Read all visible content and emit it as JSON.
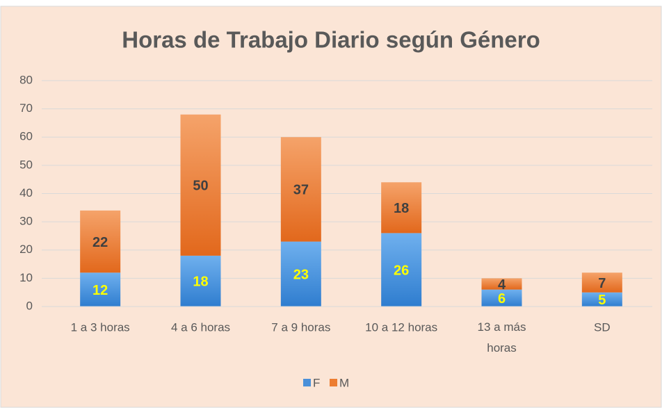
{
  "chart_data": {
    "type": "stacked_bar",
    "title": "Horas de Trabajo Diario según Género",
    "categories": [
      "1 a 3 horas",
      "4 a 6 horas",
      "7 a 9 horas",
      "10 a 12 horas",
      "13 a más horas",
      "SD"
    ],
    "series": [
      {
        "name": "F",
        "color": "#4a90d9",
        "label_color": "#ffff00",
        "values": [
          12,
          18,
          23,
          26,
          6,
          5
        ]
      },
      {
        "name": "M",
        "color": "#ed7d31",
        "label_color": "#404040",
        "values": [
          22,
          50,
          37,
          18,
          4,
          7
        ]
      }
    ],
    "ylim": [
      0,
      80
    ],
    "yticks": [
      0,
      10,
      20,
      30,
      40,
      50,
      60,
      70,
      80
    ],
    "grid": true,
    "legend": "bottom"
  }
}
